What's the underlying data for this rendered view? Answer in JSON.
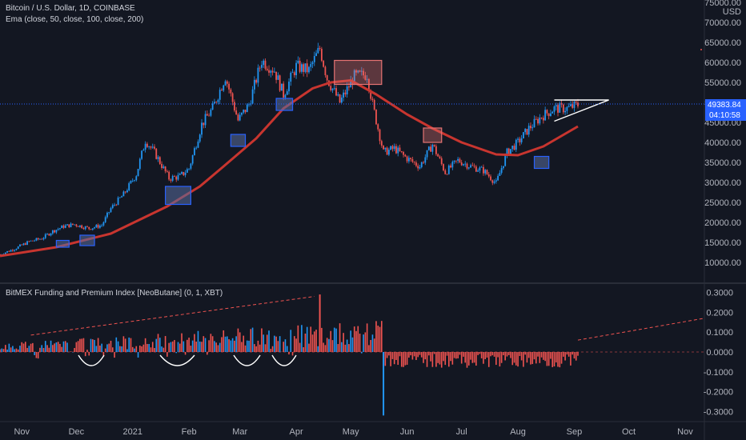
{
  "header": {
    "title": "Bitcoin / U.S. Dollar, 1D, COINBASE",
    "indicator": "Ema (close, 50, close, 100, close, 200)"
  },
  "sub_header": {
    "title": "BitMEX Funding and Premium Index [NeoButane] (0, 1, XBT)"
  },
  "price_badge": {
    "price": "49383.84",
    "countdown": "04:10:58",
    "color": "#2962ff"
  },
  "colors": {
    "up": "#2196f3",
    "down": "#ef5350",
    "ema": "#c8352f",
    "annotation_box": "#2962ff",
    "resistance_box": "#e57373",
    "background": "#131722"
  },
  "chart_data": [
    {
      "type": "candlestick",
      "panel": "price",
      "x_tick_labels": [
        "Nov",
        "Dec",
        "2021",
        "Feb",
        "Mar",
        "Apr",
        "May",
        "Jun",
        "Jul",
        "Aug",
        "Sep",
        "Oct",
        "Nov"
      ],
      "y_tick_labels": [
        "10000.00",
        "15000.00",
        "20000.00",
        "25000.00",
        "30000.00",
        "35000.00",
        "40000.00",
        "45000.00",
        "50000.00",
        "55000.00",
        "60000.00",
        "65000.00",
        "70000.00",
        "75000.00"
      ],
      "y_axis_unit": "USD",
      "ylim": [
        5000,
        75000
      ],
      "log_scale": false,
      "grid": false,
      "close_path": [
        [
          "2020-10-20",
          12000
        ],
        [
          "2020-10-28",
          13400
        ],
        [
          "2020-11-05",
          15200
        ],
        [
          "2020-11-12",
          16000
        ],
        [
          "2020-11-18",
          17800
        ],
        [
          "2020-11-24",
          19000
        ],
        [
          "2020-11-30",
          19500
        ],
        [
          "2020-12-08",
          18500
        ],
        [
          "2020-12-15",
          19300
        ],
        [
          "2020-12-20",
          23500
        ],
        [
          "2020-12-27",
          27000
        ],
        [
          "2021-01-03",
          32000
        ],
        [
          "2021-01-08",
          40500
        ],
        [
          "2021-01-13",
          37500
        ],
        [
          "2021-01-21",
          31000
        ],
        [
          "2021-01-27",
          31500
        ],
        [
          "2021-02-01",
          33500
        ],
        [
          "2021-02-08",
          44500
        ],
        [
          "2021-02-14",
          48500
        ],
        [
          "2021-02-21",
          56500
        ],
        [
          "2021-02-28",
          45500
        ],
        [
          "2021-03-06",
          49500
        ],
        [
          "2021-03-13",
          60500
        ],
        [
          "2021-03-20",
          58000
        ],
        [
          "2021-03-25",
          52000
        ],
        [
          "2021-04-01",
          59000
        ],
        [
          "2021-04-08",
          58000
        ],
        [
          "2021-04-14",
          63500
        ],
        [
          "2021-04-18",
          56000
        ],
        [
          "2021-04-25",
          50000
        ],
        [
          "2021-05-03",
          56500
        ],
        [
          "2021-05-10",
          57000
        ],
        [
          "2021-05-13",
          49500
        ],
        [
          "2021-05-19",
          37500
        ],
        [
          "2021-05-25",
          38500
        ],
        [
          "2021-06-01",
          36000
        ],
        [
          "2021-06-08",
          34000
        ],
        [
          "2021-06-15",
          39500
        ],
        [
          "2021-06-22",
          32500
        ],
        [
          "2021-06-29",
          35500
        ],
        [
          "2021-07-06",
          34000
        ],
        [
          "2021-07-13",
          33000
        ],
        [
          "2021-07-20",
          29800
        ],
        [
          "2021-07-26",
          37500
        ],
        [
          "2021-08-01",
          40000
        ],
        [
          "2021-08-07",
          43500
        ],
        [
          "2021-08-14",
          46500
        ],
        [
          "2021-08-21",
          48500
        ],
        [
          "2021-08-28",
          48500
        ],
        [
          "2021-09-03",
          49383.84
        ]
      ],
      "ema_line": [
        [
          "2020-10-20",
          11600
        ],
        [
          "2020-11-20",
          13800
        ],
        [
          "2020-12-20",
          17200
        ],
        [
          "2021-01-20",
          24000
        ],
        [
          "2021-02-07",
          29000
        ],
        [
          "2021-02-20",
          34000
        ],
        [
          "2021-03-10",
          41000
        ],
        [
          "2021-03-25",
          48500
        ],
        [
          "2021-04-10",
          53500
        ],
        [
          "2021-04-20",
          55000
        ],
        [
          "2021-05-01",
          55500
        ],
        [
          "2021-05-15",
          52000
        ],
        [
          "2021-06-01",
          47000
        ],
        [
          "2021-06-15",
          43500
        ],
        [
          "2021-07-01",
          40000
        ],
        [
          "2021-07-20",
          37000
        ],
        [
          "2021-08-01",
          36800
        ],
        [
          "2021-08-15",
          39000
        ],
        [
          "2021-09-03",
          44000
        ]
      ],
      "annotation_boxes": [
        {
          "from": "2020-11-20",
          "to": "2020-11-27",
          "low": 13800,
          "high": 15500,
          "kind": "support"
        },
        {
          "from": "2020-12-03",
          "to": "2020-12-11",
          "low": 14200,
          "high": 16800,
          "kind": "support"
        },
        {
          "from": "2021-01-19",
          "to": "2021-02-02",
          "low": 24500,
          "high": 29000,
          "kind": "support"
        },
        {
          "from": "2021-02-24",
          "to": "2021-03-04",
          "low": 39000,
          "high": 42000,
          "kind": "support"
        },
        {
          "from": "2021-03-21",
          "to": "2021-03-30",
          "low": 48000,
          "high": 51000,
          "kind": "support"
        },
        {
          "from": "2021-04-22",
          "to": "2021-05-18",
          "low": 54500,
          "high": 60500,
          "kind": "resistance"
        },
        {
          "from": "2021-06-10",
          "to": "2021-06-20",
          "low": 40000,
          "high": 43600,
          "kind": "resistance"
        },
        {
          "from": "2021-08-10",
          "to": "2021-08-18",
          "low": 33500,
          "high": 36500,
          "kind": "support"
        }
      ],
      "triangle": {
        "apex_date": "2021-09-20",
        "apex_value": 50600,
        "top_left": [
          "2021-08-21",
          50600
        ],
        "bottom_left": [
          "2021-08-21",
          45300
        ]
      }
    },
    {
      "type": "bar",
      "panel": "funding",
      "y_tick_labels": [
        "0.3000",
        "0.2000",
        "0.1000",
        "0.0000",
        "-0.1000",
        "-0.2000",
        "-0.3000"
      ],
      "ylim": [
        -0.33,
        0.32
      ],
      "grid": false,
      "series": [
        {
          "segment": "2020-10-20 to 2021-05-18",
          "typical_range": [
            0.02,
            0.16
          ],
          "peak": 0.29
        },
        {
          "segment": "2021-05-19 to 2021-08-31",
          "typical_range": [
            -0.09,
            0.0
          ],
          "min": -0.32
        }
      ],
      "trendlines": [
        {
          "from": [
            "2020-11-06",
            0.085
          ],
          "to": [
            "2021-04-11",
            0.28
          ]
        },
        {
          "from": [
            "2021-09-01",
            0.06
          ],
          "to": [
            "2021-11-15",
            0.17
          ]
        }
      ]
    }
  ]
}
